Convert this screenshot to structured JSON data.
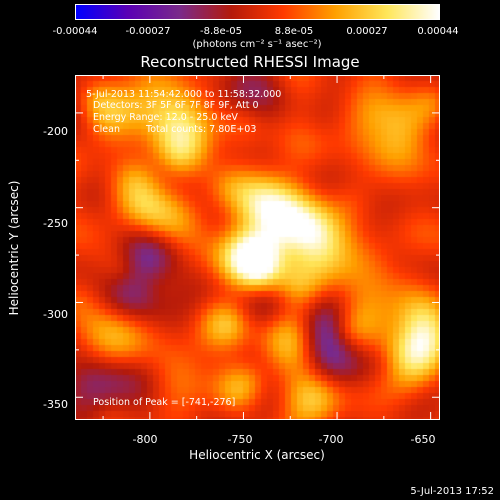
{
  "colorbar": {
    "tick_labels": [
      "-0.00044",
      "-0.00027",
      "-8.8e-05",
      "8.8e-05",
      "0.00027",
      "0.00044"
    ],
    "units": "(photons cm⁻² s⁻¹ asec⁻²)",
    "range": [
      -0.00044,
      0.00044
    ],
    "colors": [
      "#0000ff",
      "#5a00b4",
      "#7a2a8a",
      "#b41a0a",
      "#ff3a00",
      "#ffa000",
      "#ffe65a",
      "#ffffff"
    ]
  },
  "chart_data": {
    "type": "heatmap",
    "title": "Reconstructed RHESSI Image",
    "xlabel": "Heliocentric X (arcsec)",
    "ylabel": "Heliocentric Y (arcsec)",
    "xlim": [
      -840,
      -645
    ],
    "ylim": [
      -362,
      -180
    ],
    "x_ticks": [
      -800,
      -750,
      -700,
      -650
    ],
    "y_ticks": [
      -200,
      -250,
      -300,
      -350
    ],
    "annotations": {
      "time": "5-Jul-2013 11:54:42.000 to 11:58:32.000",
      "detectors": "Detectors: 3F 5F 6F 7F 8F 9F, Att 0",
      "energy": "Energy Range: 12.0 - 25.0 keV",
      "algorithm": "Clean",
      "counts": "Total counts: 7.80E+03",
      "peak": "Position of Peak = [-741,-276]"
    },
    "sources": [
      {
        "x": -745,
        "y": -276,
        "intensity": 1.0
      },
      {
        "x": -715,
        "y": -264,
        "intensity": 0.95
      },
      {
        "x": -658,
        "y": -318,
        "intensity": 0.85
      },
      {
        "x": -780,
        "y": -205,
        "intensity": 0.75
      },
      {
        "x": -742,
        "y": -245,
        "intensity": 0.7
      },
      {
        "x": -670,
        "y": -205,
        "intensity": 0.55
      },
      {
        "x": -815,
        "y": -195,
        "intensity": 0.55
      },
      {
        "x": -800,
        "y": -240,
        "intensity": 0.5
      },
      {
        "x": -690,
        "y": -300,
        "intensity": 0.45
      },
      {
        "x": -760,
        "y": -330,
        "intensity": 0.45
      },
      {
        "x": -720,
        "y": -345,
        "intensity": 0.4
      },
      {
        "x": -820,
        "y": -310,
        "intensity": 0.35
      }
    ],
    "negative_regions": [
      {
        "x": -805,
        "y": -290,
        "intensity": -0.45
      },
      {
        "x": -700,
        "y": -320,
        "intensity": -0.5
      },
      {
        "x": -755,
        "y": -190,
        "intensity": -0.35
      },
      {
        "x": -830,
        "y": -345,
        "intensity": -0.4
      }
    ]
  },
  "footer": {
    "date": "5-Jul-2013 17:52"
  }
}
